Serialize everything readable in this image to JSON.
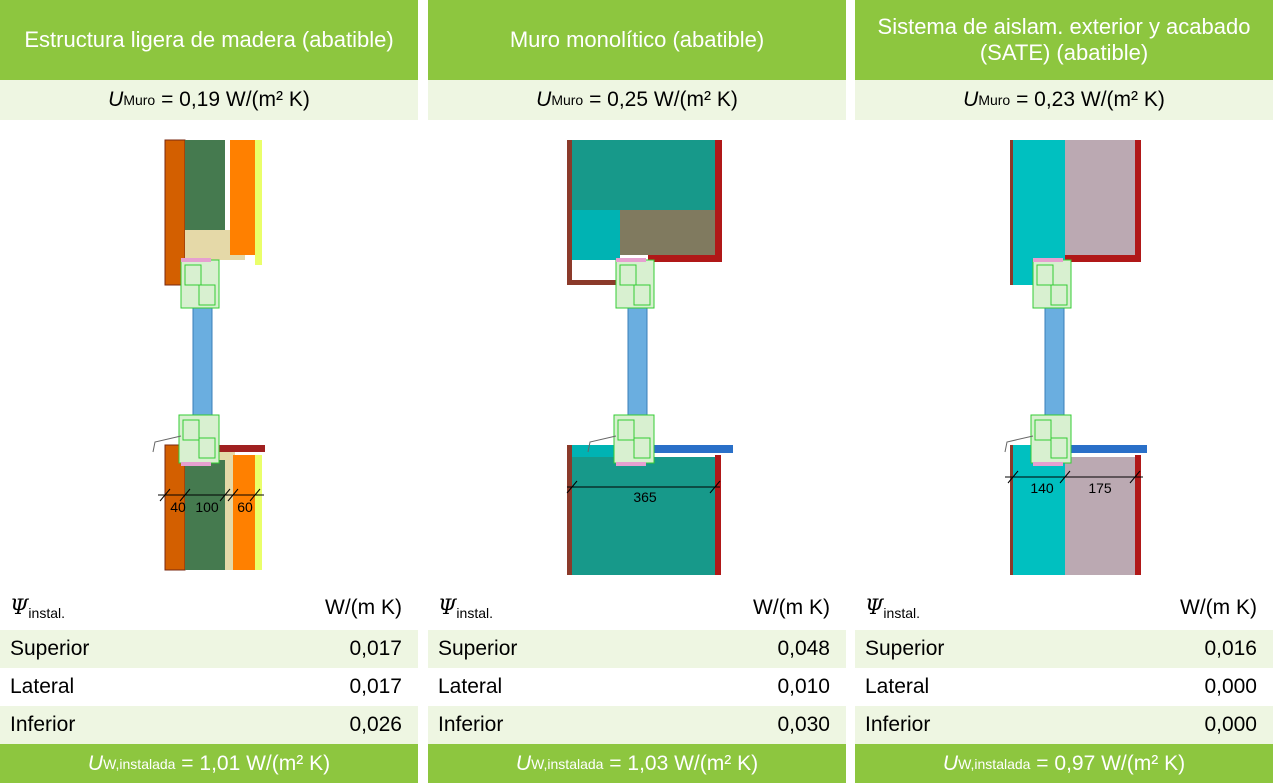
{
  "panels": [
    {
      "title": "Estructura ligera de madera (abatible)",
      "u_wall": {
        "symbol": "U",
        "sub": "Muro",
        "value": "= 0,19 W/(m² K)"
      },
      "dims": [
        "40",
        "100",
        "60"
      ],
      "psi": {
        "symbol": "Ψ",
        "sub": "instal.",
        "unit": "W/(m K)"
      },
      "rows": [
        [
          "Superior",
          "0,017"
        ],
        [
          "Lateral",
          "0,017"
        ],
        [
          "Inferior",
          "0,026"
        ]
      ],
      "u_installed": {
        "symbol": "U",
        "sub": "W,instalada",
        "value": "= 1,01 W/(m² K)"
      }
    },
    {
      "title": "Muro monolítico (abatible)",
      "u_wall": {
        "symbol": "U",
        "sub": "Muro",
        "value": "= 0,25 W/(m² K)"
      },
      "dims": [
        "365"
      ],
      "psi": {
        "symbol": "Ψ",
        "sub": "instal.",
        "unit": "W/(m K)"
      },
      "rows": [
        [
          "Superior",
          "0,048"
        ],
        [
          "Lateral",
          "0,010"
        ],
        [
          "Inferior",
          "0,030"
        ]
      ],
      "u_installed": {
        "symbol": "U",
        "sub": "W,instalada",
        "value": "= 1,03 W/(m² K)"
      }
    },
    {
      "title": "Sistema de aislam. exterior y acabado (SATE) (abatible)",
      "u_wall": {
        "symbol": "U",
        "sub": "Muro",
        "value": "= 0,23 W/(m² K)"
      },
      "dims": [
        "140",
        "175"
      ],
      "psi": {
        "symbol": "Ψ",
        "sub": "instal.",
        "unit": "W/(m K)"
      },
      "rows": [
        [
          "Superior",
          "0,016"
        ],
        [
          "Lateral",
          "0,000"
        ],
        [
          "Inferior",
          "0,000"
        ]
      ],
      "u_installed": {
        "symbol": "U",
        "sub": "W,instalada",
        "value": "= 0,97 W/(m² K)"
      }
    }
  ]
}
